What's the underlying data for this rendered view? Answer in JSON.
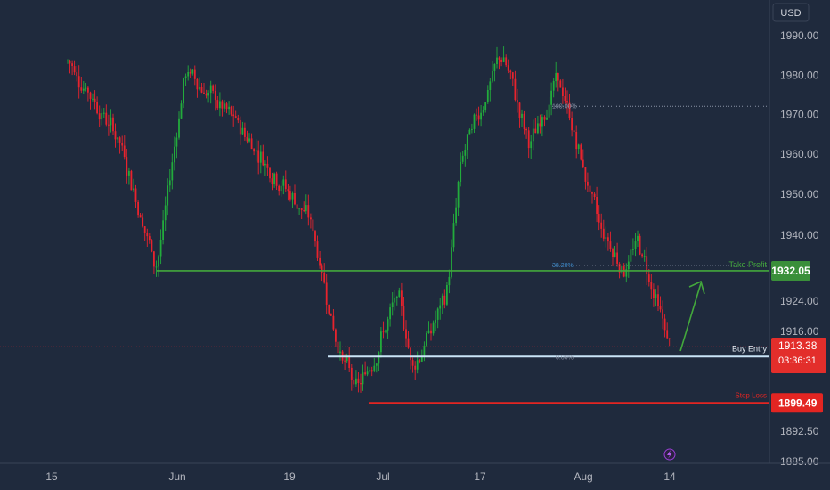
{
  "currency_button": "USD",
  "colors": {
    "background": "#1f2a3d",
    "up": "#22ab3c",
    "down": "#e8232d",
    "take_profit": "#43a83c",
    "buy_entry": "#c9e4f7",
    "stop_loss": "#e32522",
    "axis_text": "#b2b5be",
    "grid": "#2a3449"
  },
  "annotations": {
    "take_profit": {
      "label": "Take Profit",
      "price": "1932.05",
      "value": 1932.05
    },
    "buy_entry": {
      "label": "Buy Entry",
      "price": "1913.38",
      "countdown": "03:36:31",
      "value": 1910.9
    },
    "stop_loss": {
      "label": "Stop Loss",
      "price": "1899.49",
      "value": 1899.49
    },
    "fib_100": {
      "label": "100.00%",
      "value": 1972.6
    },
    "fib_382": {
      "label": "38.20%",
      "value": 1933.4
    },
    "fib_0": {
      "label": "0.00%",
      "value": 1910.9
    },
    "current_price": 1913.38
  },
  "chart_data": {
    "type": "candlestick",
    "y_ticks": [
      "1990.00",
      "1980.00",
      "1970.00",
      "1960.00",
      "1950.00",
      "1940.00",
      "1924.00",
      "1916.00",
      "1892.50",
      "1885.00"
    ],
    "x_ticks": [
      "15",
      "Jun",
      "19",
      "Jul",
      "17",
      "Aug",
      "14"
    ],
    "ylim": [
      1884.5,
      1996
    ],
    "key_points": [
      {
        "date": "May 15",
        "price": 1990.0
      },
      {
        "date": "May 24",
        "price": 1964.0
      },
      {
        "date": "May 29",
        "price": 1932.0
      },
      {
        "date": "Jun 2",
        "price": 1982.0
      },
      {
        "date": "Jun 12",
        "price": 1965.0
      },
      {
        "date": "Jun 22",
        "price": 1944.0
      },
      {
        "date": "Jun 26",
        "price": 1913.0
      },
      {
        "date": "Jun 29",
        "price": 1902.0
      },
      {
        "date": "Jul 5",
        "price": 1926.0
      },
      {
        "date": "Jul 7",
        "price": 1908.0
      },
      {
        "date": "Jul 12",
        "price": 1926.0
      },
      {
        "date": "Jul 14",
        "price": 1960.0
      },
      {
        "date": "Jul 20",
        "price": 1986.0
      },
      {
        "date": "Jul 24",
        "price": 1962.0
      },
      {
        "date": "Jul 28",
        "price": 1980.0
      },
      {
        "date": "Aug 3",
        "price": 1944.0
      },
      {
        "date": "Aug 7",
        "price": 1932.0
      },
      {
        "date": "Aug 9",
        "price": 1940.0
      },
      {
        "date": "Aug 14",
        "price": 1912.0
      }
    ]
  }
}
